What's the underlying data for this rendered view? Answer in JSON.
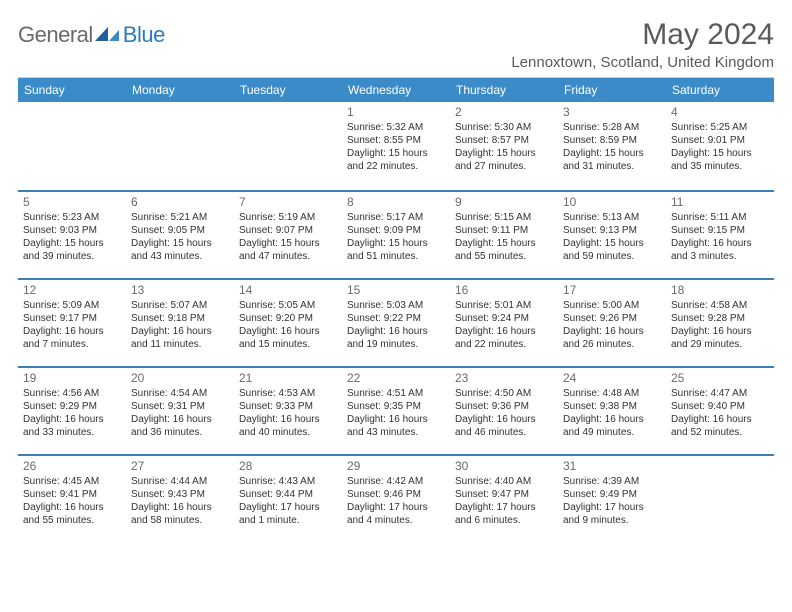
{
  "brand": {
    "word1": "General",
    "word2": "Blue"
  },
  "title": "May 2024",
  "location": "Lennoxtown, Scotland, United Kingdom",
  "colors": {
    "header_bg": "#3b8bc9",
    "header_text": "#ffffff",
    "sep": "#3a7fb5",
    "text": "#333333",
    "muted": "#6a6a6a"
  },
  "dow": [
    "Sunday",
    "Monday",
    "Tuesday",
    "Wednesday",
    "Thursday",
    "Friday",
    "Saturday"
  ],
  "weeks": [
    [
      {
        "n": "",
        "sunrise": "",
        "sunset": "",
        "daylight": ""
      },
      {
        "n": "",
        "sunrise": "",
        "sunset": "",
        "daylight": ""
      },
      {
        "n": "",
        "sunrise": "",
        "sunset": "",
        "daylight": ""
      },
      {
        "n": "1",
        "sunrise": "Sunrise: 5:32 AM",
        "sunset": "Sunset: 8:55 PM",
        "daylight": "Daylight: 15 hours and 22 minutes."
      },
      {
        "n": "2",
        "sunrise": "Sunrise: 5:30 AM",
        "sunset": "Sunset: 8:57 PM",
        "daylight": "Daylight: 15 hours and 27 minutes."
      },
      {
        "n": "3",
        "sunrise": "Sunrise: 5:28 AM",
        "sunset": "Sunset: 8:59 PM",
        "daylight": "Daylight: 15 hours and 31 minutes."
      },
      {
        "n": "4",
        "sunrise": "Sunrise: 5:25 AM",
        "sunset": "Sunset: 9:01 PM",
        "daylight": "Daylight: 15 hours and 35 minutes."
      }
    ],
    [
      {
        "n": "5",
        "sunrise": "Sunrise: 5:23 AM",
        "sunset": "Sunset: 9:03 PM",
        "daylight": "Daylight: 15 hours and 39 minutes."
      },
      {
        "n": "6",
        "sunrise": "Sunrise: 5:21 AM",
        "sunset": "Sunset: 9:05 PM",
        "daylight": "Daylight: 15 hours and 43 minutes."
      },
      {
        "n": "7",
        "sunrise": "Sunrise: 5:19 AM",
        "sunset": "Sunset: 9:07 PM",
        "daylight": "Daylight: 15 hours and 47 minutes."
      },
      {
        "n": "8",
        "sunrise": "Sunrise: 5:17 AM",
        "sunset": "Sunset: 9:09 PM",
        "daylight": "Daylight: 15 hours and 51 minutes."
      },
      {
        "n": "9",
        "sunrise": "Sunrise: 5:15 AM",
        "sunset": "Sunset: 9:11 PM",
        "daylight": "Daylight: 15 hours and 55 minutes."
      },
      {
        "n": "10",
        "sunrise": "Sunrise: 5:13 AM",
        "sunset": "Sunset: 9:13 PM",
        "daylight": "Daylight: 15 hours and 59 minutes."
      },
      {
        "n": "11",
        "sunrise": "Sunrise: 5:11 AM",
        "sunset": "Sunset: 9:15 PM",
        "daylight": "Daylight: 16 hours and 3 minutes."
      }
    ],
    [
      {
        "n": "12",
        "sunrise": "Sunrise: 5:09 AM",
        "sunset": "Sunset: 9:17 PM",
        "daylight": "Daylight: 16 hours and 7 minutes."
      },
      {
        "n": "13",
        "sunrise": "Sunrise: 5:07 AM",
        "sunset": "Sunset: 9:18 PM",
        "daylight": "Daylight: 16 hours and 11 minutes."
      },
      {
        "n": "14",
        "sunrise": "Sunrise: 5:05 AM",
        "sunset": "Sunset: 9:20 PM",
        "daylight": "Daylight: 16 hours and 15 minutes."
      },
      {
        "n": "15",
        "sunrise": "Sunrise: 5:03 AM",
        "sunset": "Sunset: 9:22 PM",
        "daylight": "Daylight: 16 hours and 19 minutes."
      },
      {
        "n": "16",
        "sunrise": "Sunrise: 5:01 AM",
        "sunset": "Sunset: 9:24 PM",
        "daylight": "Daylight: 16 hours and 22 minutes."
      },
      {
        "n": "17",
        "sunrise": "Sunrise: 5:00 AM",
        "sunset": "Sunset: 9:26 PM",
        "daylight": "Daylight: 16 hours and 26 minutes."
      },
      {
        "n": "18",
        "sunrise": "Sunrise: 4:58 AM",
        "sunset": "Sunset: 9:28 PM",
        "daylight": "Daylight: 16 hours and 29 minutes."
      }
    ],
    [
      {
        "n": "19",
        "sunrise": "Sunrise: 4:56 AM",
        "sunset": "Sunset: 9:29 PM",
        "daylight": "Daylight: 16 hours and 33 minutes."
      },
      {
        "n": "20",
        "sunrise": "Sunrise: 4:54 AM",
        "sunset": "Sunset: 9:31 PM",
        "daylight": "Daylight: 16 hours and 36 minutes."
      },
      {
        "n": "21",
        "sunrise": "Sunrise: 4:53 AM",
        "sunset": "Sunset: 9:33 PM",
        "daylight": "Daylight: 16 hours and 40 minutes."
      },
      {
        "n": "22",
        "sunrise": "Sunrise: 4:51 AM",
        "sunset": "Sunset: 9:35 PM",
        "daylight": "Daylight: 16 hours and 43 minutes."
      },
      {
        "n": "23",
        "sunrise": "Sunrise: 4:50 AM",
        "sunset": "Sunset: 9:36 PM",
        "daylight": "Daylight: 16 hours and 46 minutes."
      },
      {
        "n": "24",
        "sunrise": "Sunrise: 4:48 AM",
        "sunset": "Sunset: 9:38 PM",
        "daylight": "Daylight: 16 hours and 49 minutes."
      },
      {
        "n": "25",
        "sunrise": "Sunrise: 4:47 AM",
        "sunset": "Sunset: 9:40 PM",
        "daylight": "Daylight: 16 hours and 52 minutes."
      }
    ],
    [
      {
        "n": "26",
        "sunrise": "Sunrise: 4:45 AM",
        "sunset": "Sunset: 9:41 PM",
        "daylight": "Daylight: 16 hours and 55 minutes."
      },
      {
        "n": "27",
        "sunrise": "Sunrise: 4:44 AM",
        "sunset": "Sunset: 9:43 PM",
        "daylight": "Daylight: 16 hours and 58 minutes."
      },
      {
        "n": "28",
        "sunrise": "Sunrise: 4:43 AM",
        "sunset": "Sunset: 9:44 PM",
        "daylight": "Daylight: 17 hours and 1 minute."
      },
      {
        "n": "29",
        "sunrise": "Sunrise: 4:42 AM",
        "sunset": "Sunset: 9:46 PM",
        "daylight": "Daylight: 17 hours and 4 minutes."
      },
      {
        "n": "30",
        "sunrise": "Sunrise: 4:40 AM",
        "sunset": "Sunset: 9:47 PM",
        "daylight": "Daylight: 17 hours and 6 minutes."
      },
      {
        "n": "31",
        "sunrise": "Sunrise: 4:39 AM",
        "sunset": "Sunset: 9:49 PM",
        "daylight": "Daylight: 17 hours and 9 minutes."
      },
      {
        "n": "",
        "sunrise": "",
        "sunset": "",
        "daylight": ""
      }
    ]
  ]
}
